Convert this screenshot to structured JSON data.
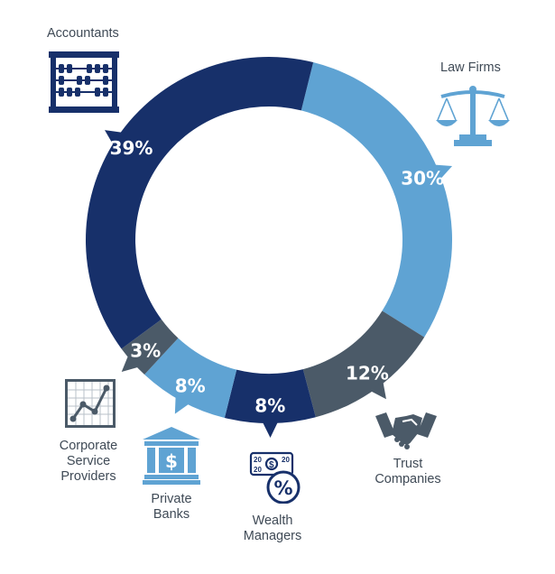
{
  "chart_data": {
    "type": "pie",
    "subtype": "donut",
    "slices": [
      {
        "label": "Law Firms",
        "value": 30,
        "value_label": "30%",
        "color": "#5fa3d3",
        "icon": "scales-icon"
      },
      {
        "label": "Trust Companies",
        "value": 12,
        "value_label": "12%",
        "color": "#4b5a68",
        "icon": "handshake-icon"
      },
      {
        "label": "Wealth Managers",
        "value": 8,
        "value_label": "8%",
        "color": "#17306a",
        "icon": "money-percent-icon"
      },
      {
        "label": "Private Banks",
        "value": 8,
        "value_label": "8%",
        "color": "#5fa3d3",
        "icon": "bank-icon"
      },
      {
        "label": "Corporate Service Providers",
        "value": 3,
        "value_label": "3%",
        "color": "#4b5a68",
        "icon": "line-chart-icon"
      },
      {
        "label": "Accountants",
        "value": 39,
        "value_label": "39%",
        "color": "#17306a",
        "icon": "abacus-icon"
      }
    ]
  },
  "labels": {
    "accountants": "Accountants",
    "law_firms": "Law Firms",
    "trust": [
      "Trust",
      "Companies"
    ],
    "wealth": [
      "Wealth",
      "Managers"
    ],
    "banks": [
      "Private",
      "Banks"
    ],
    "csp": [
      "Corporate",
      "Service",
      "Providers"
    ]
  },
  "colors": {
    "text": "#3f4a56",
    "navy": "#17306a",
    "light_blue": "#5fa3d3",
    "slate": "#4b5a68"
  }
}
